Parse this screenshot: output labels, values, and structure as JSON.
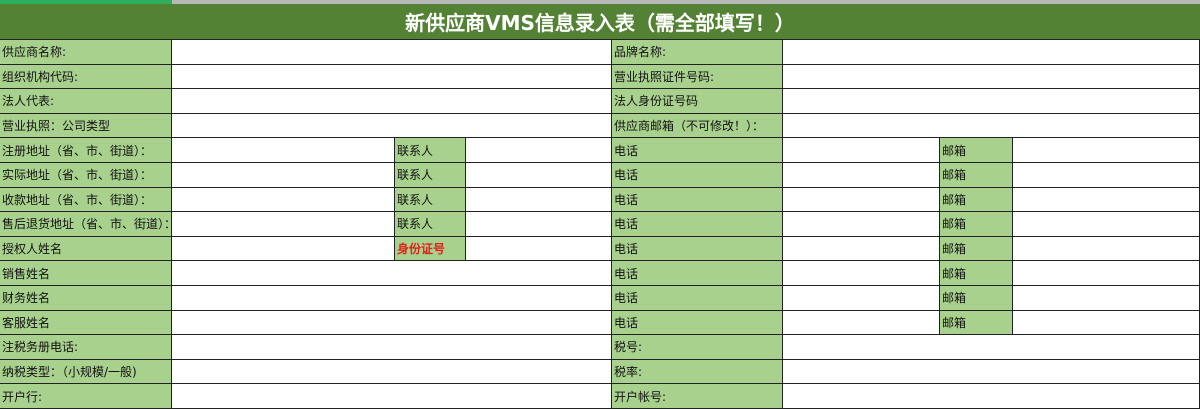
{
  "title": "新供应商VMS信息录入表（需全部填写！）",
  "colors": {
    "title_bg": "#548235",
    "label_bg": "#a9d18e",
    "highlight_text": "#e0201b"
  },
  "rows": [
    {
      "type": "wide",
      "left": "供应商名称:",
      "right": "品牌名称:"
    },
    {
      "type": "wide",
      "left": "组织机构代码:",
      "right": "营业执照证件号码:"
    },
    {
      "type": "wide",
      "left": "法人代表:",
      "right": "法人身份证号码"
    },
    {
      "type": "wide",
      "left": "营业执照：公司类型",
      "right": "供应商邮箱（不可修改！）："
    },
    {
      "type": "quad",
      "left": "注册地址（省、市、街道）：",
      "sub1": "联系人",
      "right": "电话",
      "sub2": "邮箱"
    },
    {
      "type": "quad",
      "left": "实际地址（省、市、街道）：",
      "sub1": "联系人",
      "right": "电话",
      "sub2": "邮箱"
    },
    {
      "type": "quad",
      "left": "收款地址（省、市、街道）：",
      "sub1": "联系人",
      "right": "电话",
      "sub2": "邮箱"
    },
    {
      "type": "quad",
      "left": "售后退货地址（省、市、街道）：",
      "sub1": "联系人",
      "right": "电话",
      "sub2": "邮箱"
    },
    {
      "type": "quad",
      "left": "授权人姓名",
      "sub1": "身份证号",
      "sub1_red": true,
      "right": "电话",
      "sub2": "邮箱"
    },
    {
      "type": "tri",
      "left": "销售姓名",
      "right": "电话",
      "sub2": "邮箱"
    },
    {
      "type": "tri",
      "left": "财务姓名",
      "right": "电话",
      "sub2": "邮箱"
    },
    {
      "type": "tri",
      "left": "客服姓名",
      "right": "电话",
      "sub2": "邮箱"
    },
    {
      "type": "wide",
      "left": "注税务册电话:",
      "right": "税号:"
    },
    {
      "type": "wide",
      "left": "纳税类型：（小规模/一般)",
      "right": "税率:"
    },
    {
      "type": "wide",
      "left": "开户行:",
      "right": "开户帐号:"
    }
  ]
}
